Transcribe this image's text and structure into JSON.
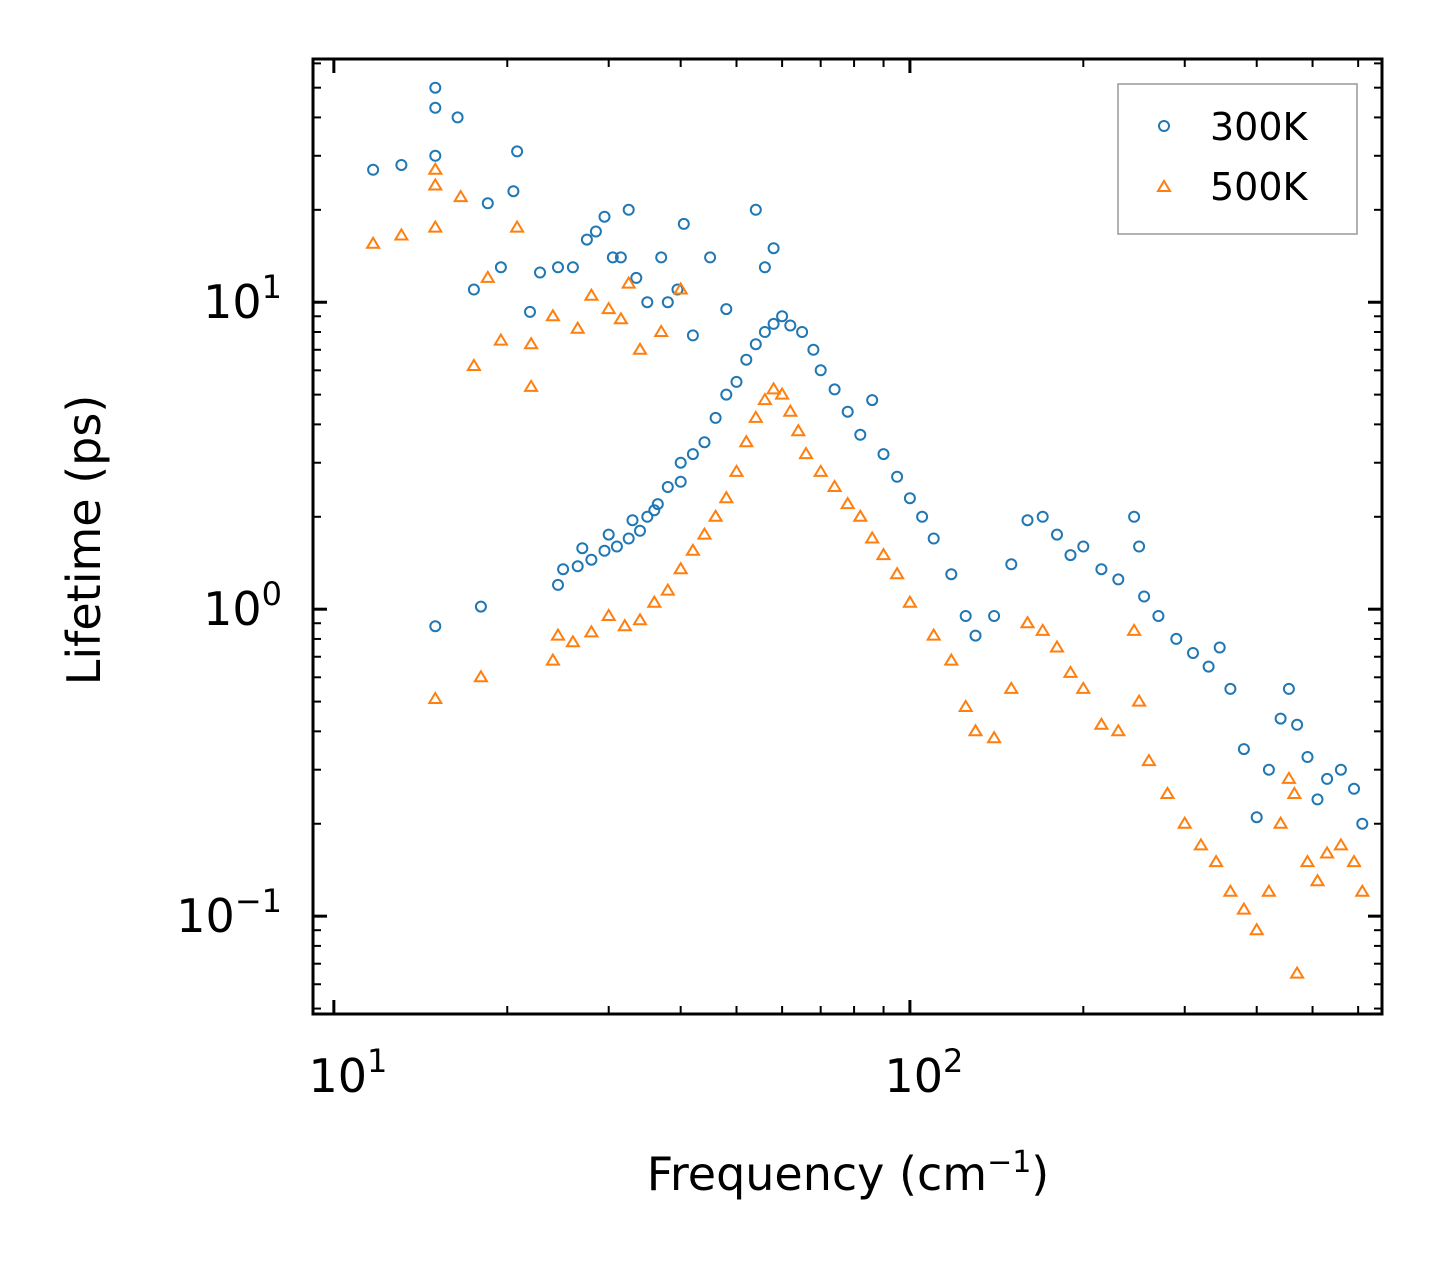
{
  "chart_data": {
    "type": "scatter",
    "title": "",
    "xlabel": "Frequency (cm",
    "xlabel_superscript": "−1",
    "xlabel_suffix": ")",
    "ylabel": "Lifetime (ps)",
    "xscale": "log",
    "yscale": "log",
    "xlim": [
      9.2,
      660
    ],
    "ylim": [
      0.048,
      62
    ],
    "x_ticks": [
      {
        "value": 10,
        "base": "10",
        "exp": "1"
      },
      {
        "value": 100,
        "base": "10",
        "exp": "2"
      }
    ],
    "y_ticks": [
      {
        "value": 0.1,
        "base": "10",
        "exp": "−1"
      },
      {
        "value": 1,
        "base": "10",
        "exp": "0"
      },
      {
        "value": 10,
        "base": "10",
        "exp": "1"
      }
    ],
    "legend": {
      "placement": "top-right",
      "entries": [
        {
          "label": "300K",
          "marker": "circle",
          "color": "#1f77b4"
        },
        {
          "label": "500K",
          "marker": "triangle",
          "color": "#ff7f0e"
        }
      ]
    },
    "series": [
      {
        "name": "300K",
        "marker": "circle",
        "color": "#1f77b4",
        "points": [
          [
            11.7,
            27
          ],
          [
            13.1,
            28
          ],
          [
            15.0,
            50
          ],
          [
            15.0,
            43
          ],
          [
            15.0,
            30
          ],
          [
            16.4,
            40
          ],
          [
            18.5,
            21
          ],
          [
            20.5,
            23
          ],
          [
            20.8,
            31
          ],
          [
            17.5,
            11
          ],
          [
            19.5,
            13
          ],
          [
            21.9,
            9.3
          ],
          [
            22.8,
            12.5
          ],
          [
            24.5,
            13
          ],
          [
            26.0,
            13
          ],
          [
            27.5,
            16
          ],
          [
            28.5,
            17
          ],
          [
            29.5,
            19
          ],
          [
            30.5,
            14
          ],
          [
            31.5,
            14
          ],
          [
            32.5,
            20
          ],
          [
            33.5,
            12
          ],
          [
            35.0,
            10
          ],
          [
            37.0,
            14
          ],
          [
            38.0,
            10
          ],
          [
            39.5,
            11
          ],
          [
            40.5,
            18
          ],
          [
            42.0,
            7.8
          ],
          [
            45.0,
            14
          ],
          [
            48.0,
            9.5
          ],
          [
            54.0,
            20
          ],
          [
            58.0,
            15
          ],
          [
            56.0,
            13
          ],
          [
            24.5,
            1.2
          ],
          [
            25.0,
            1.35
          ],
          [
            26.5,
            1.38
          ],
          [
            28.0,
            1.45
          ],
          [
            29.5,
            1.55
          ],
          [
            31.0,
            1.6
          ],
          [
            32.5,
            1.7
          ],
          [
            34.0,
            1.8
          ],
          [
            35.0,
            2.0
          ],
          [
            36.5,
            2.2
          ],
          [
            38.0,
            2.5
          ],
          [
            40.0,
            3.0
          ],
          [
            15.0,
            0.88
          ],
          [
            18.0,
            1.02
          ],
          [
            27.0,
            1.58
          ],
          [
            30.0,
            1.75
          ],
          [
            33.0,
            1.95
          ],
          [
            36.0,
            2.1
          ],
          [
            40.0,
            2.6
          ],
          [
            42.0,
            3.2
          ],
          [
            44.0,
            3.5
          ],
          [
            46.0,
            4.2
          ],
          [
            48.0,
            5.0
          ],
          [
            50.0,
            5.5
          ],
          [
            52.0,
            6.5
          ],
          [
            54.0,
            7.3
          ],
          [
            56.0,
            8.0
          ],
          [
            58.0,
            8.5
          ],
          [
            60.0,
            9.0
          ],
          [
            62.0,
            8.4
          ],
          [
            65.0,
            8.0
          ],
          [
            68.0,
            7.0
          ],
          [
            70.0,
            6.0
          ],
          [
            74.0,
            5.2
          ],
          [
            78.0,
            4.4
          ],
          [
            82.0,
            3.7
          ],
          [
            86.0,
            4.8
          ],
          [
            90.0,
            3.2
          ],
          [
            95.0,
            2.7
          ],
          [
            100.0,
            2.3
          ],
          [
            105.0,
            2.0
          ],
          [
            110.0,
            1.7
          ],
          [
            118.0,
            1.3
          ],
          [
            125.0,
            0.95
          ],
          [
            130.0,
            0.82
          ],
          [
            140.0,
            0.95
          ],
          [
            150.0,
            1.4
          ],
          [
            160.0,
            1.95
          ],
          [
            170.0,
            2.0
          ],
          [
            180.0,
            1.75
          ],
          [
            190.0,
            1.5
          ],
          [
            200.0,
            1.6
          ],
          [
            215.0,
            1.35
          ],
          [
            230.0,
            1.25
          ],
          [
            245.0,
            2.0
          ],
          [
            250.0,
            1.6
          ],
          [
            255.0,
            1.1
          ],
          [
            270.0,
            0.95
          ],
          [
            290.0,
            0.8
          ],
          [
            310.0,
            0.72
          ],
          [
            330.0,
            0.65
          ],
          [
            345.0,
            0.75
          ],
          [
            360.0,
            0.55
          ],
          [
            380.0,
            0.35
          ],
          [
            400.0,
            0.21
          ],
          [
            420.0,
            0.3
          ],
          [
            440.0,
            0.44
          ],
          [
            455.0,
            0.55
          ],
          [
            470.0,
            0.42
          ],
          [
            490.0,
            0.33
          ],
          [
            510.0,
            0.24
          ],
          [
            530.0,
            0.28
          ],
          [
            560.0,
            0.3
          ],
          [
            590.0,
            0.26
          ],
          [
            610.0,
            0.2
          ]
        ]
      },
      {
        "name": "500K",
        "marker": "triangle",
        "color": "#ff7f0e",
        "points": [
          [
            11.7,
            15.5
          ],
          [
            13.1,
            16.5
          ],
          [
            15.0,
            27
          ],
          [
            15.0,
            24
          ],
          [
            15.0,
            17.5
          ],
          [
            16.6,
            22
          ],
          [
            18.5,
            12
          ],
          [
            20.8,
            17.5
          ],
          [
            19.5,
            7.5
          ],
          [
            17.5,
            6.2
          ],
          [
            22.0,
            7.3
          ],
          [
            22.0,
            5.3
          ],
          [
            24.0,
            9.0
          ],
          [
            26.5,
            8.2
          ],
          [
            28.0,
            10.5
          ],
          [
            30.0,
            9.5
          ],
          [
            31.5,
            8.8
          ],
          [
            32.5,
            11.5
          ],
          [
            34.0,
            7.0
          ],
          [
            37.0,
            8.0
          ],
          [
            40.0,
            11.0
          ],
          [
            15.0,
            0.51
          ],
          [
            18.0,
            0.6
          ],
          [
            24.0,
            0.68
          ],
          [
            24.5,
            0.82
          ],
          [
            26.0,
            0.78
          ],
          [
            28.0,
            0.84
          ],
          [
            30.0,
            0.95
          ],
          [
            32.0,
            0.88
          ],
          [
            34.0,
            0.92
          ],
          [
            36.0,
            1.05
          ],
          [
            38.0,
            1.15
          ],
          [
            40.0,
            1.35
          ],
          [
            42.0,
            1.55
          ],
          [
            44.0,
            1.75
          ],
          [
            46.0,
            2.0
          ],
          [
            48.0,
            2.3
          ],
          [
            50.0,
            2.8
          ],
          [
            52.0,
            3.5
          ],
          [
            54.0,
            4.2
          ],
          [
            56.0,
            4.8
          ],
          [
            58.0,
            5.2
          ],
          [
            60.0,
            5.0
          ],
          [
            62.0,
            4.4
          ],
          [
            64.0,
            3.8
          ],
          [
            66.0,
            3.2
          ],
          [
            70.0,
            2.8
          ],
          [
            74.0,
            2.5
          ],
          [
            78.0,
            2.2
          ],
          [
            82.0,
            2.0
          ],
          [
            86.0,
            1.7
          ],
          [
            90.0,
            1.5
          ],
          [
            95.0,
            1.3
          ],
          [
            100.0,
            1.05
          ],
          [
            110.0,
            0.82
          ],
          [
            118.0,
            0.68
          ],
          [
            125.0,
            0.48
          ],
          [
            130.0,
            0.4
          ],
          [
            140.0,
            0.38
          ],
          [
            150.0,
            0.55
          ],
          [
            160.0,
            0.9
          ],
          [
            170.0,
            0.85
          ],
          [
            180.0,
            0.75
          ],
          [
            190.0,
            0.62
          ],
          [
            200.0,
            0.55
          ],
          [
            215.0,
            0.42
          ],
          [
            230.0,
            0.4
          ],
          [
            245.0,
            0.85
          ],
          [
            250.0,
            0.5
          ],
          [
            260.0,
            0.32
          ],
          [
            280.0,
            0.25
          ],
          [
            300.0,
            0.2
          ],
          [
            320.0,
            0.17
          ],
          [
            340.0,
            0.15
          ],
          [
            360.0,
            0.12
          ],
          [
            380.0,
            0.105
          ],
          [
            400.0,
            0.09
          ],
          [
            420.0,
            0.12
          ],
          [
            440.0,
            0.2
          ],
          [
            455.0,
            0.28
          ],
          [
            465.0,
            0.25
          ],
          [
            470.0,
            0.065
          ],
          [
            490.0,
            0.15
          ],
          [
            510.0,
            0.13
          ],
          [
            530.0,
            0.16
          ],
          [
            560.0,
            0.17
          ],
          [
            590.0,
            0.15
          ],
          [
            610.0,
            0.12
          ]
        ]
      }
    ]
  }
}
